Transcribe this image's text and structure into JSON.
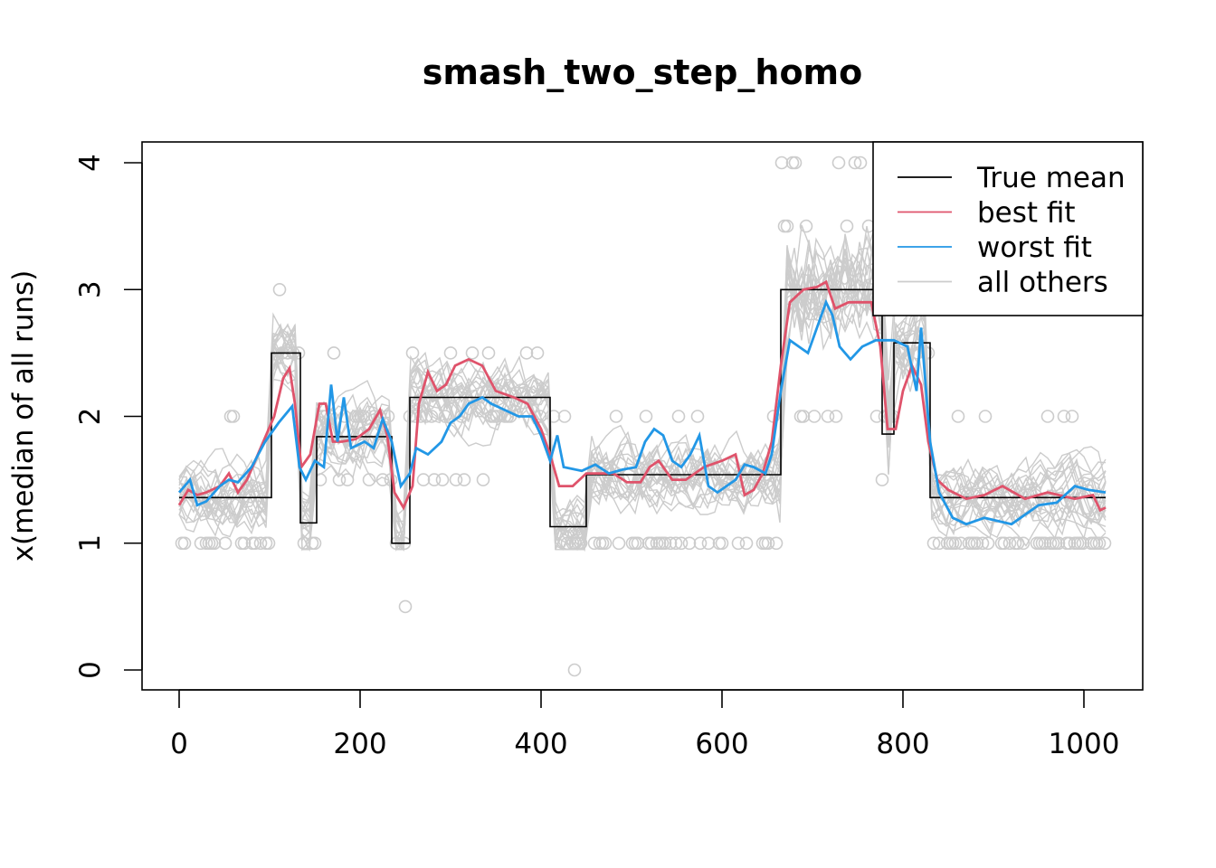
{
  "chart_data": {
    "type": "line",
    "title": "smash_two_step_homo",
    "xlabel": "",
    "ylabel": "x(median of all runs)",
    "xlim": [
      -15,
      1060
    ],
    "ylim": [
      -0.15,
      4.15
    ],
    "x_ticks": [
      "0",
      "200",
      "400",
      "600",
      "800",
      "1000"
    ],
    "y_ticks": [
      "0",
      "1",
      "2",
      "3",
      "4"
    ],
    "legend_position": "top-right",
    "legend": [
      {
        "label": "True mean",
        "color": "#000000"
      },
      {
        "label": "best fit",
        "color": "#DF536B"
      },
      {
        "label": "worst fit",
        "color": "#2297E6"
      },
      {
        "label": "all others",
        "color": "#CCCCCC"
      }
    ],
    "true_mean": [
      [
        0,
        1.36
      ],
      [
        102,
        1.36
      ],
      [
        102,
        2.5
      ],
      [
        134,
        2.5
      ],
      [
        134,
        1.16
      ],
      [
        152,
        1.16
      ],
      [
        152,
        1.84
      ],
      [
        235,
        1.84
      ],
      [
        235,
        1.0
      ],
      [
        255,
        1.0
      ],
      [
        255,
        2.15
      ],
      [
        410,
        2.15
      ],
      [
        410,
        1.13
      ],
      [
        450,
        1.13
      ],
      [
        450,
        1.54
      ],
      [
        665,
        1.54
      ],
      [
        665,
        3.0
      ],
      [
        777,
        3.0
      ],
      [
        777,
        1.86
      ],
      [
        790,
        1.86
      ],
      [
        790,
        2.58
      ],
      [
        830,
        2.58
      ],
      [
        830,
        1.36
      ],
      [
        1024,
        1.36
      ]
    ],
    "best_fit": [
      [
        0,
        1.3
      ],
      [
        10,
        1.42
      ],
      [
        20,
        1.38
      ],
      [
        30,
        1.4
      ],
      [
        45,
        1.45
      ],
      [
        55,
        1.55
      ],
      [
        65,
        1.4
      ],
      [
        75,
        1.5
      ],
      [
        90,
        1.75
      ],
      [
        105,
        2.0
      ],
      [
        115,
        2.3
      ],
      [
        122,
        2.38
      ],
      [
        128,
        2.1
      ],
      [
        135,
        1.6
      ],
      [
        145,
        1.7
      ],
      [
        155,
        2.1
      ],
      [
        162,
        2.1
      ],
      [
        170,
        1.8
      ],
      [
        180,
        1.8
      ],
      [
        195,
        1.82
      ],
      [
        210,
        1.9
      ],
      [
        222,
        2.05
      ],
      [
        230,
        1.85
      ],
      [
        238,
        1.4
      ],
      [
        248,
        1.28
      ],
      [
        258,
        1.45
      ],
      [
        265,
        2.1
      ],
      [
        275,
        2.35
      ],
      [
        285,
        2.2
      ],
      [
        295,
        2.25
      ],
      [
        305,
        2.4
      ],
      [
        320,
        2.45
      ],
      [
        335,
        2.4
      ],
      [
        350,
        2.2
      ],
      [
        370,
        2.15
      ],
      [
        385,
        2.1
      ],
      [
        400,
        1.9
      ],
      [
        410,
        1.7
      ],
      [
        420,
        1.45
      ],
      [
        435,
        1.45
      ],
      [
        450,
        1.55
      ],
      [
        465,
        1.55
      ],
      [
        480,
        1.55
      ],
      [
        495,
        1.48
      ],
      [
        510,
        1.48
      ],
      [
        520,
        1.6
      ],
      [
        530,
        1.65
      ],
      [
        545,
        1.5
      ],
      [
        560,
        1.5
      ],
      [
        580,
        1.6
      ],
      [
        600,
        1.65
      ],
      [
        615,
        1.7
      ],
      [
        625,
        1.38
      ],
      [
        635,
        1.42
      ],
      [
        645,
        1.55
      ],
      [
        655,
        1.8
      ],
      [
        665,
        2.4
      ],
      [
        675,
        2.9
      ],
      [
        690,
        3.0
      ],
      [
        705,
        3.02
      ],
      [
        715,
        3.06
      ],
      [
        725,
        2.85
      ],
      [
        740,
        2.9
      ],
      [
        755,
        2.9
      ],
      [
        765,
        2.9
      ],
      [
        775,
        2.55
      ],
      [
        783,
        1.9
      ],
      [
        792,
        1.9
      ],
      [
        800,
        2.2
      ],
      [
        810,
        2.4
      ],
      [
        820,
        2.25
      ],
      [
        828,
        1.8
      ],
      [
        838,
        1.5
      ],
      [
        850,
        1.42
      ],
      [
        870,
        1.35
      ],
      [
        890,
        1.38
      ],
      [
        910,
        1.45
      ],
      [
        935,
        1.35
      ],
      [
        960,
        1.4
      ],
      [
        990,
        1.35
      ],
      [
        1010,
        1.38
      ],
      [
        1018,
        1.26
      ],
      [
        1024,
        1.28
      ]
    ],
    "worst_fit": [
      [
        0,
        1.4
      ],
      [
        12,
        1.5
      ],
      [
        20,
        1.3
      ],
      [
        30,
        1.33
      ],
      [
        45,
        1.45
      ],
      [
        55,
        1.5
      ],
      [
        65,
        1.48
      ],
      [
        80,
        1.6
      ],
      [
        95,
        1.8
      ],
      [
        110,
        1.95
      ],
      [
        125,
        2.08
      ],
      [
        133,
        1.6
      ],
      [
        140,
        1.5
      ],
      [
        150,
        1.65
      ],
      [
        160,
        1.6
      ],
      [
        168,
        2.25
      ],
      [
        175,
        1.8
      ],
      [
        182,
        2.15
      ],
      [
        190,
        1.75
      ],
      [
        205,
        1.8
      ],
      [
        215,
        1.75
      ],
      [
        225,
        1.98
      ],
      [
        235,
        1.8
      ],
      [
        245,
        1.45
      ],
      [
        255,
        1.55
      ],
      [
        262,
        1.75
      ],
      [
        275,
        1.7
      ],
      [
        290,
        1.8
      ],
      [
        300,
        1.95
      ],
      [
        310,
        2.0
      ],
      [
        320,
        2.1
      ],
      [
        335,
        2.15
      ],
      [
        345,
        2.1
      ],
      [
        360,
        2.05
      ],
      [
        375,
        2.0
      ],
      [
        390,
        2.0
      ],
      [
        400,
        1.85
      ],
      [
        410,
        1.65
      ],
      [
        418,
        1.85
      ],
      [
        425,
        1.6
      ],
      [
        445,
        1.57
      ],
      [
        460,
        1.62
      ],
      [
        475,
        1.55
      ],
      [
        490,
        1.58
      ],
      [
        505,
        1.6
      ],
      [
        515,
        1.8
      ],
      [
        525,
        1.9
      ],
      [
        535,
        1.85
      ],
      [
        545,
        1.65
      ],
      [
        555,
        1.6
      ],
      [
        565,
        1.7
      ],
      [
        575,
        1.85
      ],
      [
        585,
        1.45
      ],
      [
        595,
        1.4
      ],
      [
        605,
        1.45
      ],
      [
        615,
        1.5
      ],
      [
        625,
        1.62
      ],
      [
        635,
        1.6
      ],
      [
        648,
        1.55
      ],
      [
        655,
        1.7
      ],
      [
        665,
        2.2
      ],
      [
        675,
        2.6
      ],
      [
        685,
        2.55
      ],
      [
        695,
        2.5
      ],
      [
        705,
        2.7
      ],
      [
        715,
        2.9
      ],
      [
        722,
        2.8
      ],
      [
        730,
        2.55
      ],
      [
        742,
        2.45
      ],
      [
        755,
        2.55
      ],
      [
        770,
        2.6
      ],
      [
        790,
        2.6
      ],
      [
        805,
        2.55
      ],
      [
        815,
        2.2
      ],
      [
        820,
        2.7
      ],
      [
        830,
        1.8
      ],
      [
        840,
        1.4
      ],
      [
        855,
        1.2
      ],
      [
        870,
        1.15
      ],
      [
        890,
        1.2
      ],
      [
        920,
        1.15
      ],
      [
        950,
        1.3
      ],
      [
        970,
        1.32
      ],
      [
        990,
        1.45
      ],
      [
        1005,
        1.42
      ],
      [
        1024,
        1.4
      ]
    ],
    "point_y_values": [
      0,
      0.5,
      1,
      1.5,
      2,
      2.5,
      3,
      3.5,
      4
    ]
  }
}
